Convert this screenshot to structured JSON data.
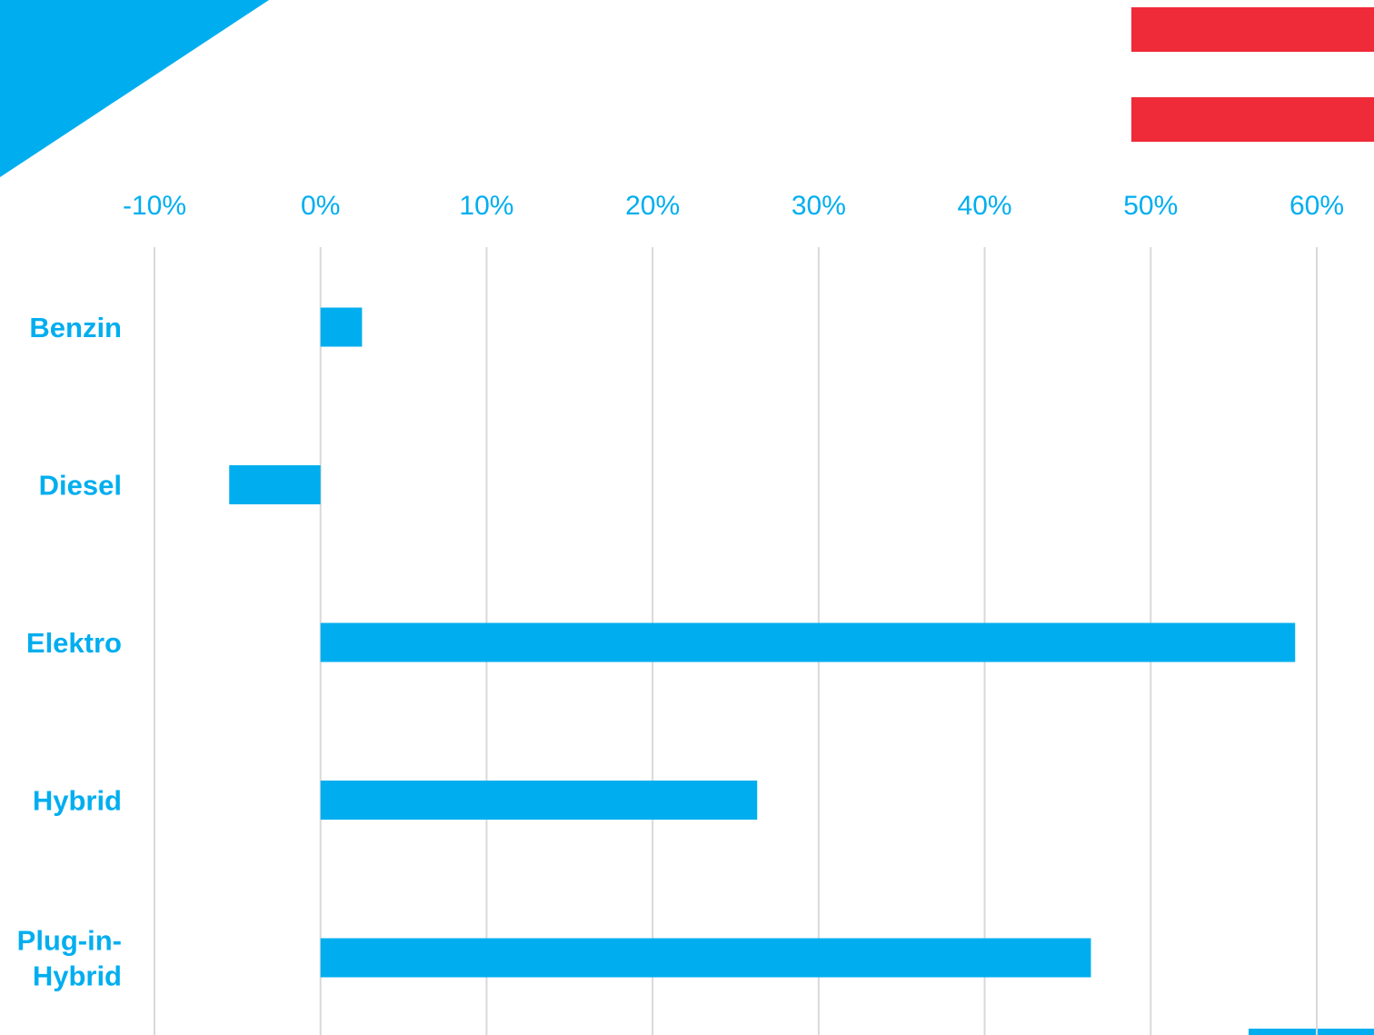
{
  "colors": {
    "accent": "#00AEEF",
    "flag_red": "#EF2A39",
    "grid": "#D9D9D9",
    "background": "#FFFFFF"
  },
  "decorations": {
    "top_left_shape": "blue-triangle",
    "top_right_shape": "austria-flag-stripes",
    "bottom_right_shape": "blue-bar-fragment"
  },
  "chart_data": {
    "type": "bar",
    "orientation": "horizontal",
    "categories": [
      "Benzin",
      "Diesel",
      "Elektro",
      "Hybrid",
      "Plug-in-Hybrid"
    ],
    "category_label_lines": [
      [
        "Benzin"
      ],
      [
        "Diesel"
      ],
      [
        "Elektro"
      ],
      [
        "Hybrid"
      ],
      [
        "Plug-in-",
        "Hybrid"
      ]
    ],
    "values": [
      0.025,
      -0.055,
      0.587,
      0.263,
      0.464
    ],
    "x_ticks": [
      -0.1,
      0,
      0.1,
      0.2,
      0.3,
      0.4,
      0.5,
      0.6
    ],
    "x_tick_labels": [
      "-10%",
      "0%",
      "10%",
      "20%",
      "30%",
      "40%",
      "50%",
      "60%"
    ],
    "xlim": [
      -0.1,
      0.6
    ],
    "axis_position": "top",
    "grid": true,
    "legend": "none",
    "title": "",
    "xlabel": "",
    "ylabel": ""
  }
}
